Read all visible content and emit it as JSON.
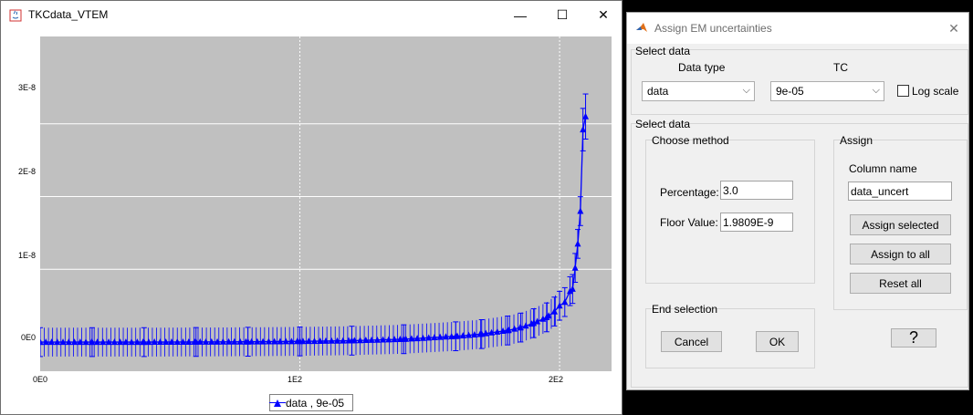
{
  "plot_window": {
    "title": "TKCdata_VTEM",
    "minimize_glyph": "—",
    "maximize_glyph": "☐",
    "close_glyph": "✕",
    "legend": "data , 9e-05"
  },
  "chart_data": {
    "type": "line",
    "title": "",
    "xlabel": "",
    "ylabel": "",
    "x_ticks": [
      "0E0",
      "1E2",
      "2E2"
    ],
    "x_tick_values": [
      0,
      100,
      200
    ],
    "y_ticks": [
      "0E0",
      "1E-8",
      "2E-8",
      "3E-8"
    ],
    "y_tick_values": [
      0,
      1e-08,
      2e-08,
      3e-08
    ],
    "xlim": [
      0,
      220
    ],
    "ylim": [
      -4e-09,
      4.2e-08
    ],
    "grid": true,
    "legend_position": "bottom-center",
    "error_bars": true,
    "uncertainty_percent": 3.0,
    "uncertainty_floor": 1.9809e-09,
    "series": [
      {
        "name": "data , 9e-05",
        "color": "#0000ff",
        "marker": "triangle",
        "x": [
          0,
          20,
          40,
          60,
          80,
          100,
          120,
          140,
          160,
          170,
          180,
          185,
          190,
          195,
          198,
          200,
          202,
          204,
          205,
          206,
          207,
          208,
          209,
          210
        ],
        "y": [
          0,
          0,
          0,
          2e-11,
          5e-11,
          1e-10,
          2e-10,
          4e-10,
          8e-10,
          1.1e-09,
          1.6e-09,
          2e-09,
          2.6e-09,
          3.4e-09,
          4.2e-09,
          5e-09,
          5.5e-09,
          7e-09,
          7.3e-09,
          1.02e-08,
          1.35e-08,
          1.8e-08,
          2.92e-08,
          3.1e-08
        ]
      }
    ]
  },
  "dialog": {
    "title": "Assign EM uncertainties",
    "close_glyph": "✕",
    "select_data_top": {
      "label": "Select data",
      "data_type_label": "Data type",
      "data_type_value": "data",
      "tc_label": "TC",
      "tc_value": "9e-05",
      "log_scale_label": "Log scale",
      "log_scale_checked": false
    },
    "select_data_bottom": {
      "label": "Select data",
      "choose_method": {
        "label": "Choose method",
        "percentage_label": "Percentage:",
        "percentage_value": "3.0",
        "floor_label": "Floor Value:",
        "floor_value": "1.9809E-9"
      },
      "assign": {
        "label": "Assign",
        "column_name_label": "Column name",
        "column_name_value": "data_uncert",
        "assign_selected": "Assign selected",
        "assign_all": "Assign to all",
        "reset_all": "Reset all"
      },
      "end_selection": {
        "label": "End selection",
        "cancel": "Cancel",
        "ok": "OK"
      },
      "help": "?"
    },
    "dropdown_arrow": "⌵"
  }
}
